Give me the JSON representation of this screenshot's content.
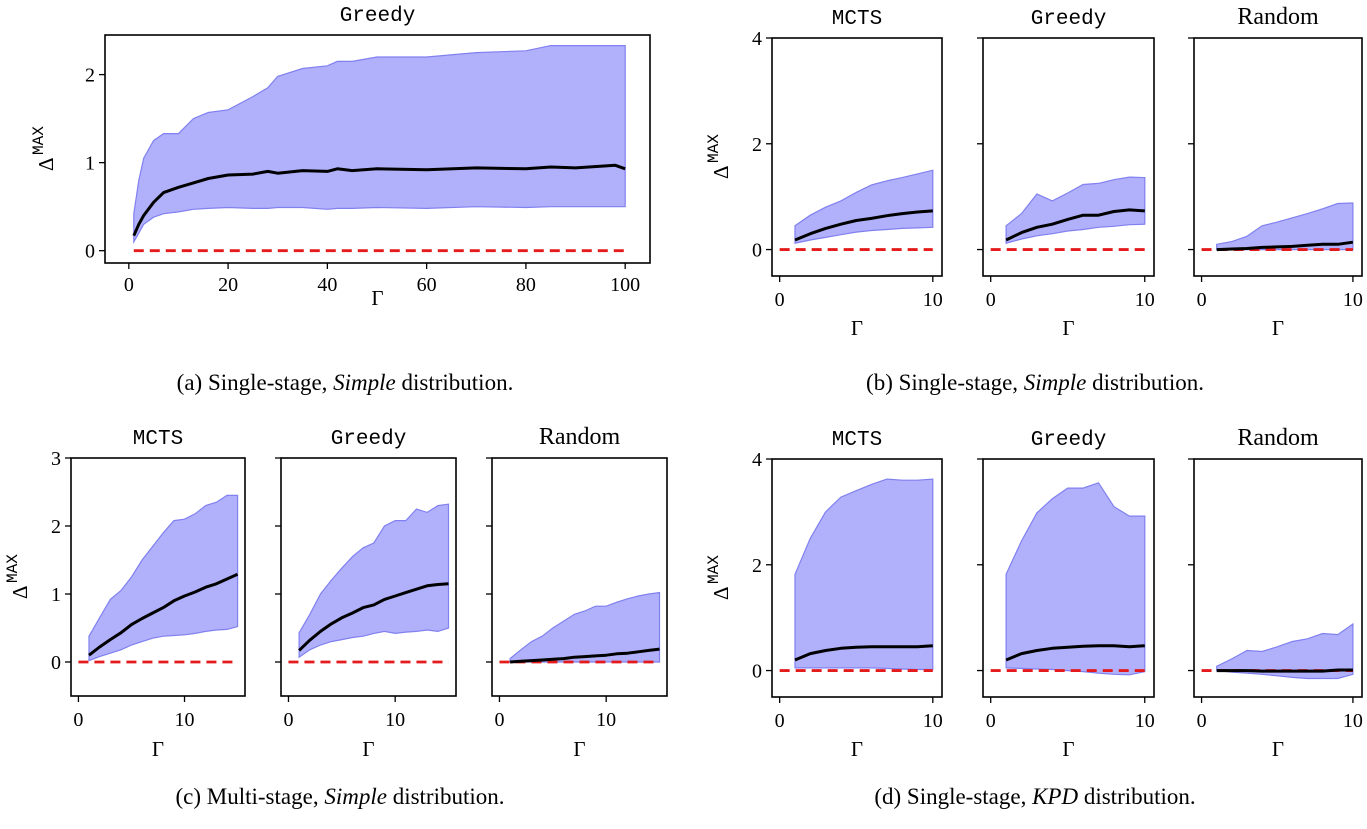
{
  "colors": {
    "band_fill": "#b1b1fb",
    "band_edge": "#8080f0",
    "mean_line": "#000000",
    "baseline": "#e41a1c"
  },
  "chart_data": [
    {
      "id": "a",
      "type": "line",
      "caption": {
        "prefix": "(a) Single-stage, ",
        "italic": "Simple",
        "suffix": " distribution."
      },
      "subplots": [
        {
          "title": "Greedy",
          "xlabel": "Γ",
          "ylabel": "Δ",
          "ylabel_sup": "MAX",
          "xlim": [
            -4.8,
            105
          ],
          "ylim": [
            -0.14,
            2.45
          ],
          "xticks": [
            0,
            20,
            40,
            60,
            80,
            100
          ],
          "yticks": [
            0,
            1,
            2
          ],
          "x": [
            1,
            2,
            3,
            5,
            7,
            10,
            13,
            16,
            20,
            25,
            28,
            30,
            35,
            40,
            42,
            45,
            50,
            60,
            70,
            80,
            85,
            90,
            95,
            98,
            100
          ],
          "mean": [
            0.17,
            0.3,
            0.4,
            0.55,
            0.66,
            0.72,
            0.77,
            0.82,
            0.86,
            0.87,
            0.9,
            0.88,
            0.91,
            0.9,
            0.93,
            0.91,
            0.93,
            0.92,
            0.94,
            0.93,
            0.95,
            0.94,
            0.96,
            0.97,
            0.93
          ],
          "lower": [
            0.1,
            0.2,
            0.3,
            0.38,
            0.42,
            0.44,
            0.47,
            0.48,
            0.49,
            0.48,
            0.48,
            0.49,
            0.49,
            0.47,
            0.48,
            0.48,
            0.49,
            0.48,
            0.5,
            0.49,
            0.5,
            0.5,
            0.5,
            0.5,
            0.5
          ],
          "upper": [
            0.42,
            0.8,
            1.05,
            1.25,
            1.33,
            1.33,
            1.5,
            1.57,
            1.6,
            1.75,
            1.85,
            1.98,
            2.07,
            2.1,
            2.15,
            2.15,
            2.2,
            2.2,
            2.25,
            2.27,
            2.33,
            2.33,
            2.33,
            2.33,
            2.33
          ],
          "baseline": 0
        }
      ]
    },
    {
      "id": "b",
      "type": "line",
      "caption": {
        "prefix": "(b) Single-stage, ",
        "italic": "Simple",
        "suffix": " distribution."
      },
      "subplots": [
        {
          "title": "MCTS",
          "xlabel": "Γ",
          "ylabel": "Δ",
          "ylabel_sup": "MAX",
          "xlim": [
            -0.5,
            10.6
          ],
          "ylim": [
            -0.5,
            4
          ],
          "xticks": [
            0,
            10
          ],
          "yticks": [
            0,
            2,
            4
          ],
          "x": [
            1,
            2,
            3,
            4,
            5,
            6,
            7,
            8,
            9,
            10
          ],
          "mean": [
            0.18,
            0.3,
            0.4,
            0.48,
            0.55,
            0.59,
            0.64,
            0.68,
            0.71,
            0.73
          ],
          "lower": [
            0.12,
            0.18,
            0.23,
            0.28,
            0.33,
            0.36,
            0.38,
            0.4,
            0.41,
            0.42
          ],
          "upper": [
            0.45,
            0.65,
            0.8,
            0.92,
            1.08,
            1.22,
            1.3,
            1.36,
            1.43,
            1.5
          ],
          "baseline": 0
        },
        {
          "title": "Greedy",
          "xlabel": "Γ",
          "xlim": [
            -0.5,
            10.6
          ],
          "ylim": [
            -0.5,
            4
          ],
          "xticks": [
            0,
            10
          ],
          "yticks": [
            0,
            2,
            4
          ],
          "x": [
            1,
            2,
            3,
            4,
            5,
            6,
            7,
            8,
            9,
            10
          ],
          "mean": [
            0.18,
            0.32,
            0.42,
            0.48,
            0.57,
            0.65,
            0.65,
            0.72,
            0.75,
            0.73
          ],
          "lower": [
            0.12,
            0.2,
            0.26,
            0.3,
            0.35,
            0.38,
            0.42,
            0.44,
            0.47,
            0.48
          ],
          "upper": [
            0.45,
            0.68,
            1.05,
            0.92,
            1.07,
            1.23,
            1.25,
            1.32,
            1.37,
            1.36
          ],
          "baseline": 0
        },
        {
          "title": "Random",
          "xlabel": "Γ",
          "xlim": [
            -0.5,
            10.6
          ],
          "ylim": [
            -0.5,
            4
          ],
          "xticks": [
            0,
            10
          ],
          "yticks": [
            0,
            2,
            4
          ],
          "x": [
            1,
            2,
            3,
            4,
            5,
            6,
            7,
            8,
            9,
            10
          ],
          "mean": [
            0.0,
            0.01,
            0.02,
            0.04,
            0.05,
            0.06,
            0.08,
            0.1,
            0.1,
            0.14
          ],
          "lower": [
            0,
            0,
            0,
            0,
            0,
            0,
            0,
            0,
            0,
            0
          ],
          "upper": [
            0.1,
            0.15,
            0.25,
            0.45,
            0.52,
            0.6,
            0.68,
            0.77,
            0.87,
            0.88
          ],
          "baseline": 0
        }
      ]
    },
    {
      "id": "c",
      "type": "line",
      "caption": {
        "prefix": "(c) Multi-stage, ",
        "italic": "Simple",
        "suffix": " distribution."
      },
      "subplots": [
        {
          "title": "MCTS",
          "xlabel": "Γ",
          "ylabel": "Δ",
          "ylabel_sup": "MAX",
          "xlim": [
            -0.7,
            15.7
          ],
          "ylim": [
            -0.5,
            3
          ],
          "xticks": [
            0,
            10
          ],
          "yticks": [
            0,
            1,
            2,
            3
          ],
          "x": [
            1,
            2,
            3,
            4,
            5,
            6,
            7,
            8,
            9,
            10,
            11,
            12,
            13,
            14,
            15
          ],
          "mean": [
            0.1,
            0.22,
            0.33,
            0.43,
            0.55,
            0.64,
            0.72,
            0.8,
            0.9,
            0.97,
            1.03,
            1.1,
            1.15,
            1.22,
            1.29
          ],
          "lower": [
            0.02,
            0.08,
            0.13,
            0.18,
            0.25,
            0.3,
            0.35,
            0.38,
            0.39,
            0.4,
            0.42,
            0.45,
            0.47,
            0.48,
            0.52
          ],
          "upper": [
            0.38,
            0.65,
            0.92,
            1.05,
            1.25,
            1.5,
            1.7,
            1.9,
            2.08,
            2.1,
            2.18,
            2.3,
            2.35,
            2.45,
            2.45
          ],
          "baseline": 0
        },
        {
          "title": "Greedy",
          "xlabel": "Γ",
          "xlim": [
            -0.7,
            15.7
          ],
          "ylim": [
            -0.5,
            3
          ],
          "xticks": [
            0,
            10
          ],
          "yticks": [
            0,
            1,
            2,
            3
          ],
          "x": [
            1,
            2,
            3,
            4,
            5,
            6,
            7,
            8,
            9,
            10,
            11,
            12,
            13,
            14,
            15
          ],
          "mean": [
            0.17,
            0.32,
            0.45,
            0.56,
            0.65,
            0.72,
            0.8,
            0.84,
            0.92,
            0.97,
            1.02,
            1.07,
            1.12,
            1.14,
            1.15
          ],
          "lower": [
            0.07,
            0.18,
            0.25,
            0.3,
            0.33,
            0.36,
            0.38,
            0.42,
            0.45,
            0.42,
            0.44,
            0.45,
            0.47,
            0.45,
            0.5
          ],
          "upper": [
            0.43,
            0.7,
            1.0,
            1.2,
            1.38,
            1.55,
            1.68,
            1.75,
            2.0,
            2.08,
            2.08,
            2.25,
            2.2,
            2.3,
            2.32
          ],
          "baseline": 0
        },
        {
          "title": "Random",
          "xlabel": "Γ",
          "xlim": [
            -0.7,
            15.7
          ],
          "ylim": [
            -0.5,
            3
          ],
          "xticks": [
            0,
            10
          ],
          "yticks": [
            0,
            1,
            2,
            3
          ],
          "x": [
            1,
            2,
            3,
            4,
            5,
            6,
            7,
            8,
            9,
            10,
            11,
            12,
            13,
            14,
            15
          ],
          "mean": [
            0.0,
            0.01,
            0.02,
            0.03,
            0.04,
            0.05,
            0.07,
            0.08,
            0.09,
            0.1,
            0.12,
            0.13,
            0.15,
            0.17,
            0.19
          ],
          "lower": [
            0,
            0,
            0,
            0,
            0,
            0,
            0,
            0,
            0,
            0,
            0,
            0,
            0,
            0,
            0
          ],
          "upper": [
            0.05,
            0.18,
            0.3,
            0.38,
            0.5,
            0.6,
            0.7,
            0.75,
            0.82,
            0.82,
            0.88,
            0.93,
            0.97,
            1.0,
            1.02
          ],
          "baseline": 0
        }
      ]
    },
    {
      "id": "d",
      "type": "line",
      "caption": {
        "prefix": "(d) Single-stage, ",
        "italic": "KPD",
        "suffix": " distribution."
      },
      "subplots": [
        {
          "title": "MCTS",
          "xlabel": "Γ",
          "ylabel": "Δ",
          "ylabel_sup": "MAX",
          "xlim": [
            -0.5,
            10.6
          ],
          "ylim": [
            -0.5,
            4
          ],
          "xticks": [
            0,
            10
          ],
          "yticks": [
            0,
            2,
            4
          ],
          "x": [
            1,
            2,
            3,
            4,
            5,
            6,
            7,
            8,
            9,
            10
          ],
          "mean": [
            0.2,
            0.32,
            0.38,
            0.42,
            0.44,
            0.45,
            0.45,
            0.45,
            0.45,
            0.47
          ],
          "lower": [
            0.05,
            0.05,
            0.05,
            0.05,
            0.05,
            0.05,
            0.04,
            0.03,
            0.02,
            0.02
          ],
          "upper": [
            1.82,
            2.5,
            3.0,
            3.28,
            3.4,
            3.52,
            3.62,
            3.6,
            3.6,
            3.62
          ],
          "baseline": 0
        },
        {
          "title": "Greedy",
          "xlabel": "Γ",
          "xlim": [
            -0.5,
            10.6
          ],
          "ylim": [
            -0.5,
            4
          ],
          "xticks": [
            0,
            10
          ],
          "yticks": [
            0,
            2,
            4
          ],
          "x": [
            1,
            2,
            3,
            4,
            5,
            6,
            7,
            8,
            9,
            10
          ],
          "mean": [
            0.2,
            0.32,
            0.38,
            0.42,
            0.44,
            0.46,
            0.47,
            0.47,
            0.45,
            0.47
          ],
          "lower": [
            0.05,
            0.04,
            0.03,
            0.02,
            0.0,
            -0.02,
            -0.05,
            -0.07,
            -0.08,
            -0.02
          ],
          "upper": [
            1.82,
            2.45,
            2.98,
            3.25,
            3.45,
            3.45,
            3.55,
            3.1,
            2.92,
            2.92
          ],
          "baseline": 0
        },
        {
          "title": "Random",
          "xlabel": "Γ",
          "xlim": [
            -0.5,
            10.6
          ],
          "ylim": [
            -0.5,
            4
          ],
          "xticks": [
            0,
            10
          ],
          "yticks": [
            0,
            2,
            4
          ],
          "x": [
            1,
            2,
            3,
            4,
            5,
            6,
            7,
            8,
            9,
            10
          ],
          "mean": [
            0.0,
            0.0,
            0.0,
            -0.01,
            -0.01,
            -0.01,
            -0.01,
            -0.01,
            0.01,
            0.01
          ],
          "lower": [
            0.0,
            -0.03,
            -0.05,
            -0.07,
            -0.1,
            -0.13,
            -0.15,
            -0.15,
            -0.15,
            -0.07
          ],
          "upper": [
            0.08,
            0.22,
            0.38,
            0.36,
            0.45,
            0.55,
            0.6,
            0.7,
            0.68,
            0.88
          ],
          "baseline": 0
        }
      ]
    }
  ]
}
